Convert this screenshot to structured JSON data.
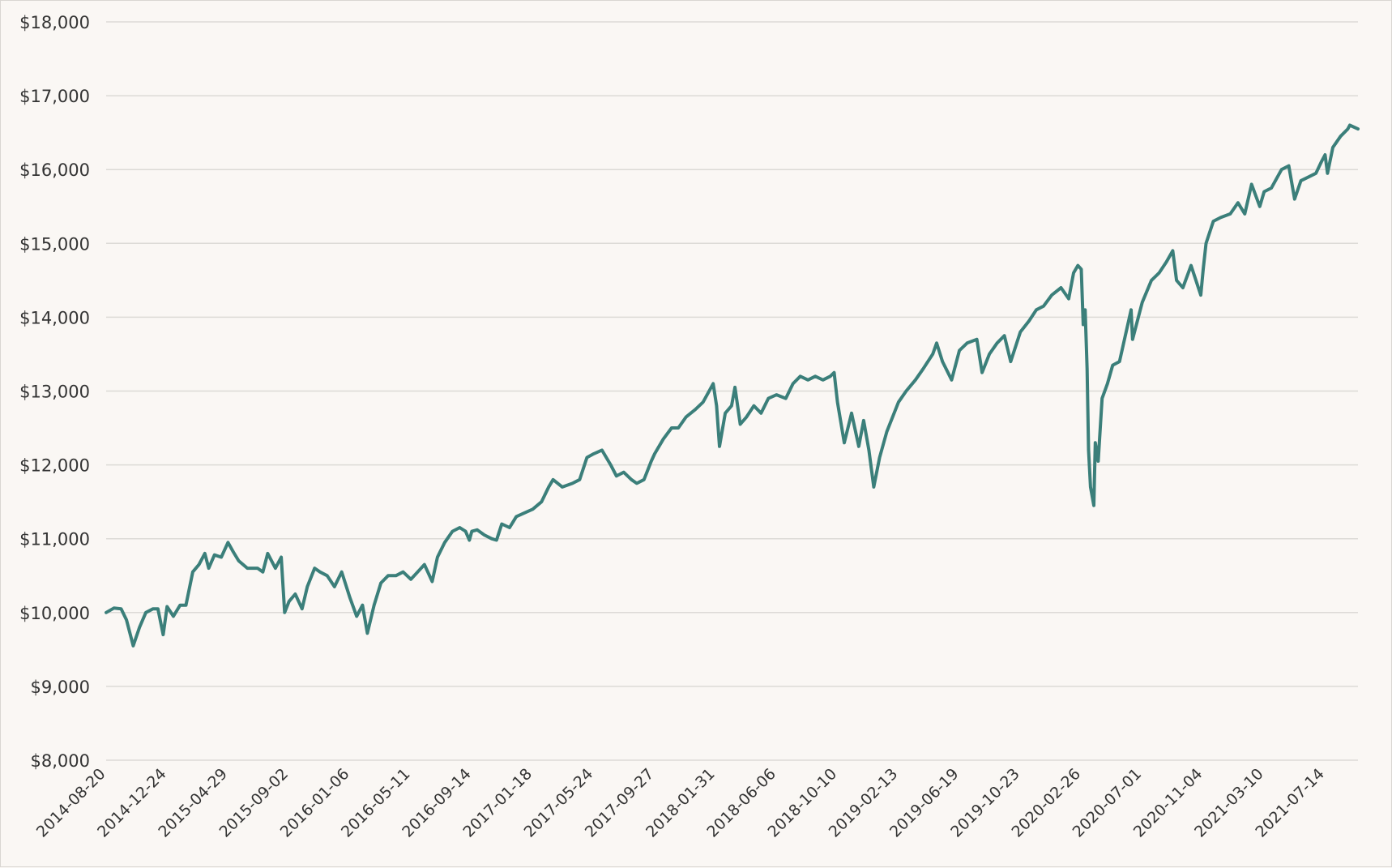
{
  "chart_data": {
    "type": "line",
    "title": "",
    "xlabel": "",
    "ylabel": "",
    "ylim": [
      8000,
      18000
    ],
    "grid": true,
    "line_color": "#3b7f7a",
    "background": "#faf7f4",
    "y_ticks": [
      "$8,000",
      "$9,000",
      "$10,000",
      "$11,000",
      "$12,000",
      "$13,000",
      "$14,000",
      "$15,000",
      "$16,000",
      "$17,000",
      "$18,000"
    ],
    "x_ticks": [
      "2014-08-20",
      "2014-12-24",
      "2015-04-29",
      "2015-09-02",
      "2016-01-06",
      "2016-05-11",
      "2016-09-14",
      "2017-01-18",
      "2017-05-24",
      "2017-09-27",
      "2018-01-31",
      "2018-06-06",
      "2018-10-10",
      "2019-02-13",
      "2019-06-19",
      "2019-10-23",
      "2020-02-26",
      "2020-07-01",
      "2020-11-04",
      "2021-03-10",
      "2021-07-14"
    ],
    "series": [
      {
        "points": [
          [
            "2014-08-20",
            10000
          ],
          [
            "2014-09-05",
            10060
          ],
          [
            "2014-09-20",
            10050
          ],
          [
            "2014-10-01",
            9900
          ],
          [
            "2014-10-15",
            9550
          ],
          [
            "2014-10-28",
            9800
          ],
          [
            "2014-11-10",
            10000
          ],
          [
            "2014-11-25",
            10050
          ],
          [
            "2014-12-05",
            10050
          ],
          [
            "2014-12-16",
            9700
          ],
          [
            "2014-12-24",
            10080
          ],
          [
            "2015-01-06",
            9950
          ],
          [
            "2015-01-20",
            10100
          ],
          [
            "2015-02-01",
            10100
          ],
          [
            "2015-02-15",
            10550
          ],
          [
            "2015-02-28",
            10650
          ],
          [
            "2015-03-12",
            10800
          ],
          [
            "2015-03-20",
            10600
          ],
          [
            "2015-04-01",
            10780
          ],
          [
            "2015-04-15",
            10750
          ],
          [
            "2015-04-29",
            10950
          ],
          [
            "2015-05-10",
            10820
          ],
          [
            "2015-05-21",
            10700
          ],
          [
            "2015-06-08",
            10600
          ],
          [
            "2015-06-29",
            10600
          ],
          [
            "2015-07-10",
            10550
          ],
          [
            "2015-07-20",
            10800
          ],
          [
            "2015-08-05",
            10600
          ],
          [
            "2015-08-17",
            10750
          ],
          [
            "2015-08-24",
            10000
          ],
          [
            "2015-09-02",
            10150
          ],
          [
            "2015-09-15",
            10250
          ],
          [
            "2015-09-29",
            10050
          ],
          [
            "2015-10-10",
            10350
          ],
          [
            "2015-10-25",
            10600
          ],
          [
            "2015-11-05",
            10550
          ],
          [
            "2015-11-20",
            10500
          ],
          [
            "2015-12-05",
            10350
          ],
          [
            "2015-12-20",
            10550
          ],
          [
            "2016-01-06",
            10200
          ],
          [
            "2016-01-20",
            9950
          ],
          [
            "2016-02-01",
            10100
          ],
          [
            "2016-02-11",
            9720
          ],
          [
            "2016-02-25",
            10100
          ],
          [
            "2016-03-10",
            10400
          ],
          [
            "2016-03-25",
            10500
          ],
          [
            "2016-04-10",
            10500
          ],
          [
            "2016-04-25",
            10550
          ],
          [
            "2016-05-11",
            10450
          ],
          [
            "2016-05-25",
            10550
          ],
          [
            "2016-06-08",
            10650
          ],
          [
            "2016-06-24",
            10420
          ],
          [
            "2016-07-05",
            10750
          ],
          [
            "2016-07-20",
            10950
          ],
          [
            "2016-08-05",
            11100
          ],
          [
            "2016-08-20",
            11150
          ],
          [
            "2016-09-01",
            11100
          ],
          [
            "2016-09-09",
            10980
          ],
          [
            "2016-09-14",
            11100
          ],
          [
            "2016-09-25",
            11120
          ],
          [
            "2016-10-10",
            11050
          ],
          [
            "2016-10-25",
            11000
          ],
          [
            "2016-11-04",
            10980
          ],
          [
            "2016-11-15",
            11200
          ],
          [
            "2016-12-01",
            11150
          ],
          [
            "2016-12-15",
            11300
          ],
          [
            "2017-01-01",
            11350
          ],
          [
            "2017-01-18",
            11400
          ],
          [
            "2017-02-05",
            11500
          ],
          [
            "2017-02-20",
            11700
          ],
          [
            "2017-03-01",
            11800
          ],
          [
            "2017-03-20",
            11700
          ],
          [
            "2017-04-10",
            11750
          ],
          [
            "2017-04-25",
            11800
          ],
          [
            "2017-05-10",
            12100
          ],
          [
            "2017-05-24",
            12150
          ],
          [
            "2017-06-10",
            12200
          ],
          [
            "2017-06-28",
            12000
          ],
          [
            "2017-07-10",
            11850
          ],
          [
            "2017-07-25",
            11900
          ],
          [
            "2017-08-10",
            11800
          ],
          [
            "2017-08-21",
            11750
          ],
          [
            "2017-09-05",
            11800
          ],
          [
            "2017-09-20",
            12050
          ],
          [
            "2017-09-27",
            12150
          ],
          [
            "2017-10-15",
            12350
          ],
          [
            "2017-11-01",
            12500
          ],
          [
            "2017-11-15",
            12500
          ],
          [
            "2017-12-01",
            12650
          ],
          [
            "2017-12-20",
            12750
          ],
          [
            "2018-01-05",
            12850
          ],
          [
            "2018-01-26",
            13100
          ],
          [
            "2018-02-02",
            12800
          ],
          [
            "2018-02-08",
            12250
          ],
          [
            "2018-02-20",
            12700
          ],
          [
            "2018-03-05",
            12800
          ],
          [
            "2018-03-12",
            13050
          ],
          [
            "2018-03-23",
            12550
          ],
          [
            "2018-04-05",
            12650
          ],
          [
            "2018-04-20",
            12800
          ],
          [
            "2018-05-05",
            12700
          ],
          [
            "2018-05-20",
            12900
          ],
          [
            "2018-06-06",
            12950
          ],
          [
            "2018-06-25",
            12900
          ],
          [
            "2018-07-10",
            13100
          ],
          [
            "2018-07-25",
            13200
          ],
          [
            "2018-08-10",
            13150
          ],
          [
            "2018-08-25",
            13200
          ],
          [
            "2018-09-10",
            13150
          ],
          [
            "2018-09-25",
            13200
          ],
          [
            "2018-10-03",
            13250
          ],
          [
            "2018-10-10",
            12850
          ],
          [
            "2018-10-24",
            12300
          ],
          [
            "2018-11-08",
            12700
          ],
          [
            "2018-11-23",
            12250
          ],
          [
            "2018-12-03",
            12600
          ],
          [
            "2018-12-14",
            12200
          ],
          [
            "2018-12-24",
            11700
          ],
          [
            "2019-01-05",
            12100
          ],
          [
            "2019-01-20",
            12450
          ],
          [
            "2019-02-13",
            12850
          ],
          [
            "2019-03-01",
            13000
          ],
          [
            "2019-03-20",
            13150
          ],
          [
            "2019-04-05",
            13300
          ],
          [
            "2019-04-25",
            13500
          ],
          [
            "2019-05-03",
            13650
          ],
          [
            "2019-05-15",
            13400
          ],
          [
            "2019-06-03",
            13150
          ],
          [
            "2019-06-19",
            13550
          ],
          [
            "2019-07-05",
            13650
          ],
          [
            "2019-07-25",
            13700
          ],
          [
            "2019-08-05",
            13250
          ],
          [
            "2019-08-20",
            13500
          ],
          [
            "2019-09-05",
            13650
          ],
          [
            "2019-09-20",
            13750
          ],
          [
            "2019-10-03",
            13400
          ],
          [
            "2019-10-23",
            13800
          ],
          [
            "2019-11-10",
            13950
          ],
          [
            "2019-11-25",
            14100
          ],
          [
            "2019-12-10",
            14150
          ],
          [
            "2019-12-27",
            14300
          ],
          [
            "2020-01-15",
            14400
          ],
          [
            "2020-01-31",
            14250
          ],
          [
            "2020-02-10",
            14600
          ],
          [
            "2020-02-19",
            14700
          ],
          [
            "2020-02-26",
            14650
          ],
          [
            "2020-03-01",
            13900
          ],
          [
            "2020-03-05",
            14100
          ],
          [
            "2020-03-09",
            13300
          ],
          [
            "2020-03-12",
            12200
          ],
          [
            "2020-03-16",
            11700
          ],
          [
            "2020-03-23",
            11450
          ],
          [
            "2020-03-26",
            12300
          ],
          [
            "2020-04-01",
            12050
          ],
          [
            "2020-04-09",
            12900
          ],
          [
            "2020-04-20",
            13100
          ],
          [
            "2020-05-01",
            13350
          ],
          [
            "2020-05-15",
            13400
          ],
          [
            "2020-06-08",
            14100
          ],
          [
            "2020-06-11",
            13700
          ],
          [
            "2020-07-01",
            14200
          ],
          [
            "2020-07-20",
            14500
          ],
          [
            "2020-08-05",
            14600
          ],
          [
            "2020-08-20",
            14750
          ],
          [
            "2020-09-02",
            14900
          ],
          [
            "2020-09-10",
            14500
          ],
          [
            "2020-09-23",
            14400
          ],
          [
            "2020-10-10",
            14700
          ],
          [
            "2020-10-30",
            14300
          ],
          [
            "2020-11-04",
            14650
          ],
          [
            "2020-11-10",
            15000
          ],
          [
            "2020-11-25",
            15300
          ],
          [
            "2020-12-10",
            15350
          ],
          [
            "2020-12-30",
            15400
          ],
          [
            "2021-01-15",
            15550
          ],
          [
            "2021-01-29",
            15400
          ],
          [
            "2021-02-12",
            15800
          ],
          [
            "2021-03-01",
            15500
          ],
          [
            "2021-03-10",
            15700
          ],
          [
            "2021-03-25",
            15750
          ],
          [
            "2021-04-15",
            16000
          ],
          [
            "2021-04-30",
            16050
          ],
          [
            "2021-05-12",
            15600
          ],
          [
            "2021-05-25",
            15850
          ],
          [
            "2021-06-10",
            15900
          ],
          [
            "2021-06-25",
            15950
          ],
          [
            "2021-07-06",
            16100
          ],
          [
            "2021-07-14",
            16200
          ],
          [
            "2021-07-19",
            15950
          ],
          [
            "2021-07-30",
            16300
          ],
          [
            "2021-08-15",
            16450
          ],
          [
            "2021-08-30",
            16550
          ],
          [
            "2021-09-03",
            16600
          ],
          [
            "2021-09-20",
            16550
          ]
        ]
      }
    ]
  }
}
